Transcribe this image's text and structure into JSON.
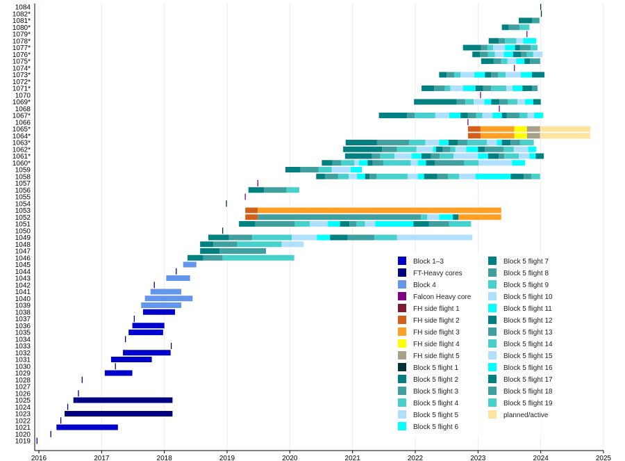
{
  "chart_data": {
    "type": "bar",
    "subtype": "timeline",
    "title": "",
    "xlabel": "",
    "ylabel": "",
    "xlim": [
      2016,
      2025
    ],
    "x_ticks": [
      "2016",
      "2017",
      "2018",
      "2019",
      "2020",
      "2021",
      "2022",
      "2023",
      "2024",
      "2025"
    ],
    "grid": true,
    "legend_placement": "bottom-right",
    "colors": {
      "block13": "#0000cd",
      "ftheavy": "#000080",
      "block4": "#6495ed",
      "fhcore": "#800080",
      "fh1": "#801a33",
      "fh2": "#d2601a",
      "fh3": "#ffa024",
      "fh4": "#ffff00",
      "fh5": "#aaa08a",
      "b5f1": "#003333",
      "b5f2": "#008080",
      "b5f3": "#40a0a0",
      "b5f4": "#48d1cc",
      "b5f5": "#b0e0ff",
      "b5f6": "#00ffff",
      "planned": "#ffe4a0"
    },
    "b5_cycle": [
      "b5f2",
      "b5f3",
      "b5f4",
      "b5f5",
      "b5f6"
    ],
    "legend": [
      {
        "label": "Block 1–3",
        "color": "block13"
      },
      {
        "label": "FT-Heavy cores",
        "color": "ftheavy"
      },
      {
        "label": "Block 4",
        "color": "block4"
      },
      {
        "label": "Falcon Heavy core",
        "color": "fhcore"
      },
      {
        "label": "FH side flight 1",
        "color": "fh1"
      },
      {
        "label": "FH side flight 2",
        "color": "fh2"
      },
      {
        "label": "FH side flight 3",
        "color": "fh3"
      },
      {
        "label": "FH side flight 4",
        "color": "fh4"
      },
      {
        "label": "FH side flight 5",
        "color": "fh5"
      },
      {
        "label": "Block 5 flight 1",
        "color": "b5f1"
      },
      {
        "label": "Block 5 flight 2",
        "color": "b5f2"
      },
      {
        "label": "Block 5 flight 3",
        "color": "b5f3"
      },
      {
        "label": "Block 5 flight 4",
        "color": "b5f4"
      },
      {
        "label": "Block 5 flight 5",
        "color": "b5f5"
      },
      {
        "label": "Block 5 flight 6",
        "color": "b5f6"
      },
      {
        "label": "Block 5 flight 7",
        "color": "b5f2"
      },
      {
        "label": "Block 5 flight 8",
        "color": "b5f3"
      },
      {
        "label": "Block 5 flight 9",
        "color": "b5f4"
      },
      {
        "label": "Block 5 flight 10",
        "color": "b5f5"
      },
      {
        "label": "Block 5 flight 11",
        "color": "b5f6"
      },
      {
        "label": "Block 5 flight 12",
        "color": "b5f2"
      },
      {
        "label": "Block 5 flight 13",
        "color": "b5f3"
      },
      {
        "label": "Block 5 flight 14",
        "color": "b5f4"
      },
      {
        "label": "Block 5 flight 15",
        "color": "b5f5"
      },
      {
        "label": "Block 5 flight 16",
        "color": "b5f6"
      },
      {
        "label": "Block 5 flight 17",
        "color": "b5f2"
      },
      {
        "label": "Block 5 flight 18",
        "color": "b5f3"
      },
      {
        "label": "Block 5 flight 19",
        "color": "b5f4"
      },
      {
        "label": "planned/active",
        "color": "planned"
      }
    ],
    "boosters": [
      {
        "label": "1084",
        "type": "b5",
        "flights": [
          2024.0
        ]
      },
      {
        "label": "1082*",
        "type": "b5",
        "flights": [
          2024.01
        ]
      },
      {
        "label": "1081*",
        "type": "b5",
        "flights": [
          2023.65,
          2023.86
        ],
        "end": 2023.98
      },
      {
        "label": "1080*",
        "type": "b5",
        "flights": [
          2023.38,
          2023.49,
          2023.66
        ],
        "end": 2023.82
      },
      {
        "label": "1079*",
        "type": "fhcore",
        "flights": [
          2023.78
        ]
      },
      {
        "label": "1078*",
        "type": "b5",
        "flights": [
          2023.17,
          2023.33,
          2023.43,
          2023.61,
          2023.72
        ],
        "end": 2023.93
      },
      {
        "label": "1077*",
        "type": "b5",
        "flights": [
          2022.76,
          2023.05,
          2023.15,
          2023.24,
          2023.43,
          2023.59,
          2023.67,
          2023.84
        ],
        "end": 2023.95
      },
      {
        "label": "1076*",
        "type": "b5",
        "flights": [
          2022.91,
          2023.03,
          2023.16,
          2023.27,
          2023.41,
          2023.56,
          2023.69,
          2023.78,
          2023.88
        ],
        "end": 2024.03
      },
      {
        "label": "1075*",
        "type": "b5",
        "flights": [
          2023.05,
          2023.25,
          2023.37,
          2023.47,
          2023.61,
          2023.74,
          2023.83
        ],
        "end": 2023.99
      },
      {
        "label": "1074*",
        "type": "fhcore",
        "flights": [
          2023.58
        ]
      },
      {
        "label": "1073*",
        "type": "b5",
        "flights": [
          2022.38,
          2022.5,
          2022.62,
          2022.72,
          2022.94,
          2023.11,
          2023.21,
          2023.32,
          2023.44,
          2023.68,
          2023.86
        ],
        "end": 2024.06
      },
      {
        "label": "1072*",
        "type": "b5",
        "flights": []
      },
      {
        "label": "1071*",
        "type": "b5",
        "flights": [
          2022.1,
          2022.3,
          2022.47,
          2022.56,
          2022.76,
          2022.96,
          2023.08,
          2023.21,
          2023.45,
          2023.55,
          2023.71,
          2023.86
        ],
        "end": 2023.95
      },
      {
        "label": "1070",
        "type": "fhcore",
        "flights": [
          2023.04
        ]
      },
      {
        "label": "1069*",
        "type": "b5",
        "flights": [
          2021.98,
          2022.66,
          2022.8,
          2022.93,
          2023.1,
          2023.21,
          2023.34,
          2023.48,
          2023.63,
          2023.75,
          2023.88
        ],
        "end": 2024.0
      },
      {
        "label": "1068",
        "type": "fhcore",
        "flights": [
          2023.34
        ]
      },
      {
        "label": "1067*",
        "type": "b5",
        "flights": [
          2021.42,
          2021.87,
          2021.99,
          2022.32,
          2022.54,
          2022.72,
          2022.84,
          2022.97,
          2023.07,
          2023.23,
          2023.38,
          2023.46,
          2023.66,
          2023.79,
          2023.89
        ],
        "end": 2024.04
      },
      {
        "label": "1066",
        "type": "fhcore",
        "flights": [
          2022.84
        ]
      },
      {
        "label": "1065*",
        "type": "segments",
        "segments": [
          [
            2022.84,
            2023.04,
            "fh2"
          ],
          [
            2023.04,
            2023.58,
            "fh3"
          ],
          [
            2023.58,
            2023.78,
            "fh4"
          ],
          [
            2023.78,
            2023.99,
            "fh5"
          ],
          [
            2023.99,
            2024.79,
            "planned"
          ]
        ]
      },
      {
        "label": "1064*",
        "type": "segments",
        "segments": [
          [
            2022.84,
            2023.04,
            "fh2"
          ],
          [
            2023.04,
            2023.58,
            "fh3"
          ],
          [
            2023.58,
            2023.78,
            "fh4"
          ],
          [
            2023.78,
            2023.99,
            "fh5"
          ],
          [
            2023.99,
            2024.79,
            "planned"
          ]
        ]
      },
      {
        "label": "1063*",
        "type": "b5",
        "flights": [
          2020.89,
          2021.39,
          2021.9,
          2022.16,
          2022.38,
          2022.53,
          2022.68,
          2022.83,
          2023.14,
          2023.3,
          2023.38,
          2023.52,
          2023.67
        ],
        "end": 2023.89
      },
      {
        "label": "1062*",
        "type": "b5",
        "flights": [
          2020.85,
          2021.47,
          2021.71,
          2022.02,
          2022.28,
          2022.33,
          2022.44,
          2022.56,
          2022.64,
          2022.81,
          2023.0,
          2023.11,
          2023.41,
          2023.57,
          2023.8
        ],
        "end": 2023.93
      },
      {
        "label": "1061*",
        "type": "b5",
        "flights": [
          2020.88,
          2021.31,
          2021.44,
          2021.67,
          2021.94,
          2022.1,
          2022.25,
          2022.39,
          2022.61,
          2023.0,
          2023.16,
          2023.33,
          2023.42,
          2023.65,
          2023.82,
          2023.92
        ],
        "end": 2024.05
      },
      {
        "label": "1060*",
        "type": "b5",
        "flights": [
          2020.51,
          2020.68,
          2020.82,
          2021.03,
          2021.1,
          2021.24,
          2021.32,
          2021.49,
          2021.93,
          2022.04,
          2022.17,
          2022.31,
          2022.78,
          2023.01,
          2023.54
        ],
        "end": 2023.75
      },
      {
        "label": "1059",
        "type": "b5",
        "flights": [
          2019.93,
          2020.17,
          2020.46,
          2020.67,
          2020.97
        ],
        "end": 2021.15
      },
      {
        "label": "1058",
        "type": "b5",
        "flights": [
          2020.42,
          2020.56,
          2020.77,
          2020.94,
          2021.07,
          2021.2,
          2021.27,
          2021.38,
          2021.88,
          2022.04,
          2022.14,
          2022.35,
          2022.52,
          2022.7,
          2022.96,
          2023.52,
          2023.73,
          2023.85
        ],
        "end": 2023.99
      },
      {
        "label": "1057",
        "type": "fhcore",
        "flights": [
          2019.49
        ]
      },
      {
        "label": "1056",
        "type": "b5",
        "flights": [
          2019.34,
          2019.59,
          2019.95
        ],
        "end": 2020.15
      },
      {
        "label": "1055",
        "type": "fhcore",
        "flights": [
          2019.29
        ]
      },
      {
        "label": "1054",
        "type": "b5",
        "flights": [
          2018.99
        ]
      },
      {
        "label": "1053",
        "type": "segments",
        "segments": [
          [
            2019.29,
            2019.49,
            "fh2"
          ],
          [
            2019.49,
            2023.37,
            "fh3"
          ]
        ]
      },
      {
        "label": "1052",
        "type": "segments",
        "segments": [
          [
            2019.29,
            2019.49,
            "fh2"
          ],
          [
            2019.49,
            2022.09,
            "b5f3"
          ],
          [
            2022.09,
            2022.19,
            "b5f4"
          ],
          [
            2022.19,
            2022.38,
            "b5f5"
          ],
          [
            2022.38,
            2022.6,
            "b5f6"
          ],
          [
            2022.6,
            2022.69,
            "b5f2"
          ],
          [
            2022.69,
            2023.37,
            "fh3"
          ]
        ]
      },
      {
        "label": "1051",
        "type": "b5",
        "flights": [
          2019.19,
          2019.45,
          2020.08,
          2020.32,
          2020.61,
          2020.8,
          2020.95,
          2021.06,
          2021.2,
          2021.36,
          2021.97,
          2022.22,
          2022.54
        ],
        "end": 2022.89
      },
      {
        "label": "1050",
        "type": "b5",
        "flights": [
          2018.93
        ]
      },
      {
        "label": "1049",
        "type": "b5",
        "flights": [
          2018.7,
          2019.03,
          2019.4,
          2020.03,
          2020.43,
          2020.64,
          2020.92,
          2021.35,
          2021.71
        ],
        "end": 2022.91
      },
      {
        "label": "1048",
        "type": "b5",
        "flights": [
          2018.57,
          2018.78,
          2019.16,
          2019.87
        ],
        "end": 2020.22
      },
      {
        "label": "1047",
        "type": "b5",
        "flights": [
          2018.57,
          2018.88
        ],
        "end": 2019.62
      },
      {
        "label": "1046",
        "type": "b5",
        "flights": [
          2018.37,
          2018.62,
          2018.93
        ],
        "end": 2020.07
      },
      {
        "label": "1045",
        "type": "block4",
        "flights": [
          2018.3
        ],
        "end": 2018.51
      },
      {
        "label": "1044",
        "type": "block4",
        "flights": [
          2018.19
        ]
      },
      {
        "label": "1043",
        "type": "block4",
        "flights": [
          2018.03
        ],
        "end": 2018.41
      },
      {
        "label": "1042",
        "type": "block4",
        "flights": [
          2017.84
        ]
      },
      {
        "label": "1041",
        "type": "block4",
        "flights": [
          2017.78
        ],
        "end": 2018.27
      },
      {
        "label": "1040",
        "type": "block4",
        "flights": [
          2017.69
        ],
        "end": 2018.45
      },
      {
        "label": "1039",
        "type": "block4",
        "flights": [
          2017.63
        ],
        "end": 2018.27
      },
      {
        "label": "1038",
        "type": "block13",
        "flights": [
          2017.66
        ],
        "end": 2018.17
      },
      {
        "label": "1037",
        "type": "block13",
        "flights": [
          2017.52
        ]
      },
      {
        "label": "1036",
        "type": "block13",
        "flights": [
          2017.49
        ],
        "end": 2018.0
      },
      {
        "label": "1035",
        "type": "block13",
        "flights": [
          2017.43
        ],
        "end": 2017.98
      },
      {
        "label": "1034",
        "type": "block13",
        "flights": [
          2017.38
        ]
      },
      {
        "label": "1033",
        "type": "ftheavy",
        "flights": [
          2018.11
        ]
      },
      {
        "label": "1032",
        "type": "block13",
        "flights": [
          2017.34
        ],
        "end": 2018.1
      },
      {
        "label": "1031",
        "type": "block13",
        "flights": [
          2017.15
        ],
        "end": 2017.8
      },
      {
        "label": "1030",
        "type": "block13",
        "flights": [
          2017.22
        ]
      },
      {
        "label": "1029",
        "type": "block13",
        "flights": [
          2017.05
        ],
        "end": 2017.49
      },
      {
        "label": "1028",
        "type": "block13",
        "flights": [
          2016.69
        ]
      },
      {
        "label": "1027",
        "type": "block13",
        "flights": []
      },
      {
        "label": "1026",
        "type": "block13",
        "flights": [
          2016.63
        ]
      },
      {
        "label": "1025",
        "type": "ftheavy",
        "flights": [
          2016.55
        ],
        "end": 2018.13
      },
      {
        "label": "1024",
        "type": "block13",
        "flights": [
          2016.46
        ]
      },
      {
        "label": "1023",
        "type": "ftheavy",
        "flights": [
          2016.41
        ],
        "end": 2018.13
      },
      {
        "label": "1022",
        "type": "block13",
        "flights": [
          2016.35
        ]
      },
      {
        "label": "1021",
        "type": "block13",
        "flights": [
          2016.28
        ],
        "end": 2017.26
      },
      {
        "label": "1020",
        "type": "block13",
        "flights": [
          2016.19
        ]
      },
      {
        "label": "1019",
        "type": "block13",
        "flights": [
          2015.97
        ]
      }
    ]
  }
}
